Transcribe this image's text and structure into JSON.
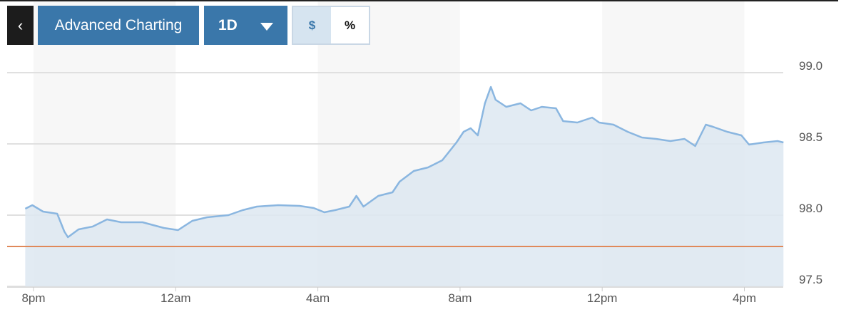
{
  "toolbar": {
    "back_icon": "chevron-left-icon",
    "back_glyph": "‹",
    "advanced_label": "Advanced Charting",
    "range_label": "1D",
    "range_icon": "caret-down-icon",
    "currency_label": "$",
    "percent_label": "%",
    "selected": "$"
  },
  "chart_data": {
    "type": "area",
    "ylim": [
      97.5,
      99.0
    ],
    "yticks": [
      "97.5",
      "98.0",
      "98.5",
      "99.0"
    ],
    "xticks": [
      "8pm",
      "12am",
      "4am",
      "8am",
      "12pm",
      "4pm"
    ],
    "grid": true,
    "line_color": "#8ab6e0",
    "fill_color": "#dde8f1",
    "reference_line": {
      "value": 97.78,
      "color": "#e0895a"
    },
    "series": [
      {
        "points": [
          [
            "19:46",
            98.045
          ],
          [
            "19:58",
            98.07
          ],
          [
            "20:16",
            98.025
          ],
          [
            "20:40",
            98.01
          ],
          [
            "20:52",
            97.885
          ],
          [
            "20:58",
            97.845
          ],
          [
            "21:16",
            97.9
          ],
          [
            "21:40",
            97.92
          ],
          [
            "22:04",
            97.97
          ],
          [
            "22:28",
            97.95
          ],
          [
            "23:04",
            97.95
          ],
          [
            "23:40",
            97.91
          ],
          [
            "00:04",
            97.895
          ],
          [
            "00:28",
            97.96
          ],
          [
            "00:53",
            97.985
          ],
          [
            "01:29",
            98.0
          ],
          [
            "01:53",
            98.035
          ],
          [
            "02:17",
            98.06
          ],
          [
            "02:53",
            98.07
          ],
          [
            "03:29",
            98.065
          ],
          [
            "03:53",
            98.05
          ],
          [
            "04:11",
            98.02
          ],
          [
            "04:29",
            98.035
          ],
          [
            "04:53",
            98.06
          ],
          [
            "05:05",
            98.135
          ],
          [
            "05:17",
            98.06
          ],
          [
            "05:42",
            98.135
          ],
          [
            "06:06",
            98.16
          ],
          [
            "06:18",
            98.235
          ],
          [
            "06:42",
            98.31
          ],
          [
            "07:06",
            98.335
          ],
          [
            "07:30",
            98.385
          ],
          [
            "07:54",
            98.51
          ],
          [
            "08:06",
            98.585
          ],
          [
            "08:18",
            98.61
          ],
          [
            "08:30",
            98.56
          ],
          [
            "08:42",
            98.785
          ],
          [
            "08:52",
            98.9
          ],
          [
            "09:00",
            98.81
          ],
          [
            "09:18",
            98.76
          ],
          [
            "09:42",
            98.785
          ],
          [
            "10:00",
            98.735
          ],
          [
            "10:18",
            98.76
          ],
          [
            "10:42",
            98.75
          ],
          [
            "10:54",
            98.66
          ],
          [
            "11:18",
            98.65
          ],
          [
            "11:43",
            98.685
          ],
          [
            "11:55",
            98.65
          ],
          [
            "12:19",
            98.635
          ],
          [
            "12:43",
            98.585
          ],
          [
            "13:07",
            98.545
          ],
          [
            "13:31",
            98.535
          ],
          [
            "13:55",
            98.52
          ],
          [
            "14:19",
            98.535
          ],
          [
            "14:37",
            98.485
          ],
          [
            "14:55",
            98.635
          ],
          [
            "15:07",
            98.62
          ],
          [
            "15:31",
            98.585
          ],
          [
            "15:55",
            98.56
          ],
          [
            "16:08",
            98.495
          ],
          [
            "16:32",
            98.51
          ],
          [
            "16:56",
            98.52
          ],
          [
            "17:06",
            98.51
          ]
        ]
      }
    ]
  }
}
